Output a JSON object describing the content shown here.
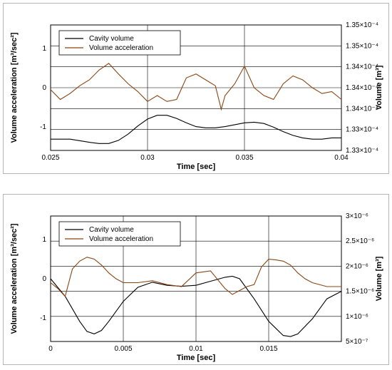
{
  "chart_data": [
    {
      "type": "line",
      "xlabel": "Time [sec]",
      "ylabel_left": "Volume acceleration [m³/sec²]",
      "ylabel_right": "Volume [m³]",
      "xlim": [
        0.025,
        0.04
      ],
      "ylim_left": [
        -1.6,
        1.6
      ],
      "ylim_right": [
        0.000133,
        0.000135
      ],
      "x_ticks": [
        "0.025",
        "0.03",
        "0.035",
        "0.04"
      ],
      "y_ticks_left": [
        "-1",
        "0",
        "1"
      ],
      "y_ticks_right": [
        "1.33×10⁻⁴",
        "1.33×10⁻⁴",
        "1.34×10⁻⁴",
        "1.34×10⁻⁴",
        "1.34×10⁻⁴",
        "1.35×10⁻⁴",
        "1.35×10⁻⁴"
      ],
      "legend": [
        "Cavity volume",
        "Volume acceleration"
      ],
      "legend_position": "top-left",
      "grid": true,
      "series": [
        {
          "name": "Cavity volume",
          "color": "#000000",
          "axis": "right",
          "x": [
            0.025,
            0.026,
            0.027,
            0.0275,
            0.028,
            0.0285,
            0.029,
            0.0295,
            0.03,
            0.0305,
            0.031,
            0.0315,
            0.032,
            0.0325,
            0.033,
            0.0335,
            0.034,
            0.0345,
            0.035,
            0.0355,
            0.036,
            0.0365,
            0.037,
            0.0375,
            0.038,
            0.0385,
            0.039,
            0.0395,
            0.04
          ],
          "y": [
            0.00013318,
            0.00013318,
            0.00013313,
            0.00013311,
            0.00013311,
            0.00013316,
            0.00013326,
            0.00013339,
            0.0001335,
            0.00013356,
            0.00013356,
            0.00013351,
            0.00013344,
            0.00013338,
            0.00013336,
            0.00013336,
            0.00013338,
            0.00013341,
            0.00013344,
            0.00013345,
            0.00013343,
            0.00013337,
            0.0001333,
            0.00013324,
            0.0001332,
            0.00013318,
            0.00013318,
            0.0001332,
            0.0001332
          ]
        },
        {
          "name": "Volume acceleration",
          "color": "#8b4513",
          "axis": "left",
          "x": [
            0.025,
            0.0255,
            0.026,
            0.0265,
            0.027,
            0.0275,
            0.028,
            0.0285,
            0.029,
            0.0295,
            0.03,
            0.0305,
            0.031,
            0.0315,
            0.032,
            0.0325,
            0.033,
            0.0335,
            0.0338,
            0.034,
            0.0345,
            0.035,
            0.0355,
            0.036,
            0.0365,
            0.037,
            0.0375,
            0.038,
            0.0385,
            0.039,
            0.0395,
            0.04
          ],
          "y": [
            -0.05,
            -0.3,
            -0.15,
            0.05,
            0.2,
            0.45,
            0.62,
            0.35,
            0.1,
            -0.1,
            -0.35,
            -0.2,
            -0.35,
            -0.3,
            0.25,
            0.35,
            0.2,
            0.05,
            -0.55,
            -0.2,
            0.1,
            0.55,
            0.0,
            -0.2,
            -0.3,
            0.1,
            0.3,
            0.2,
            0.0,
            -0.15,
            -0.1,
            -0.3
          ]
        }
      ]
    },
    {
      "type": "line",
      "xlabel": "Time [sec]",
      "ylabel_left": "Volume acceleration [m³/sec²]",
      "ylabel_right": "Volume [m³]",
      "xlim": [
        0,
        0.02
      ],
      "ylim_left": [
        -1.6,
        1.6
      ],
      "ylim_right": [
        5e-07,
        3e-06
      ],
      "x_ticks": [
        "0",
        "0.005",
        "0.01",
        "0.015"
      ],
      "y_ticks_left": [
        "-1",
        "0",
        "1"
      ],
      "y_ticks_right": [
        "5×10⁻⁷",
        "1×10⁻⁶",
        "1.5×10⁻⁶",
        "2×10⁻⁶",
        "2.5×10⁻⁶",
        "3×10⁻⁶"
      ],
      "legend": [
        "Cavity volume",
        "Volume acceleration"
      ],
      "legend_position": "top-left",
      "grid": true,
      "series": [
        {
          "name": "Cavity volume",
          "color": "#000000",
          "axis": "right",
          "x": [
            0,
            0.001,
            0.002,
            0.0025,
            0.003,
            0.0035,
            0.004,
            0.005,
            0.006,
            0.007,
            0.008,
            0.009,
            0.01,
            0.011,
            0.012,
            0.0125,
            0.013,
            0.014,
            0.015,
            0.016,
            0.0165,
            0.017,
            0.018,
            0.019,
            0.02
          ],
          "y": [
            1.75e-06,
            1.4e-06,
            9e-07,
            7e-07,
            6.5e-07,
            7.2e-07,
            9e-07,
            1.3e-06,
            1.58e-06,
            1.68e-06,
            1.62e-06,
            1.6e-06,
            1.62e-06,
            1.7e-06,
            1.78e-06,
            1.8e-06,
            1.75e-06,
            1.35e-06,
            9e-07,
            6.2e-07,
            6e-07,
            6.5e-07,
            9.5e-07,
            1.35e-06,
            1.5e-06
          ]
        },
        {
          "name": "Volume acceleration",
          "color": "#8b4513",
          "axis": "left",
          "x": [
            0,
            0.0005,
            0.001,
            0.0015,
            0.002,
            0.0025,
            0.003,
            0.0035,
            0.004,
            0.0045,
            0.005,
            0.006,
            0.007,
            0.008,
            0.009,
            0.01,
            0.011,
            0.012,
            0.0125,
            0.013,
            0.0135,
            0.014,
            0.0145,
            0.015,
            0.0155,
            0.016,
            0.0165,
            0.017,
            0.0175,
            0.018,
            0.019,
            0.02
          ],
          "y": [
            -0.1,
            -0.25,
            -0.45,
            0.25,
            0.45,
            0.55,
            0.5,
            0.35,
            0.15,
            0.0,
            -0.1,
            -0.1,
            -0.05,
            -0.15,
            -0.2,
            0.15,
            0.2,
            -0.25,
            -0.4,
            -0.3,
            -0.2,
            -0.15,
            0.3,
            0.5,
            0.48,
            0.45,
            0.35,
            0.15,
            0.0,
            -0.1,
            -0.2,
            -0.2
          ]
        }
      ]
    }
  ]
}
